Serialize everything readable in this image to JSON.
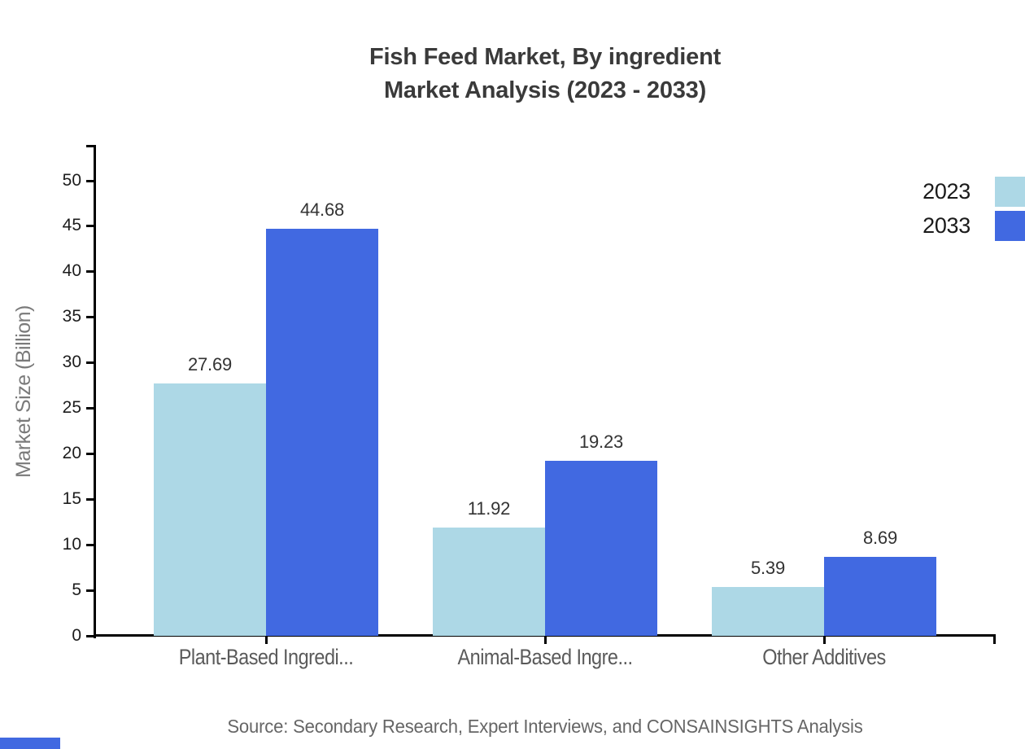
{
  "title": {
    "line1": "Fish Feed Market, By ingredient",
    "line2": "Market Analysis (2023 - 2033)"
  },
  "legend": {
    "entries": [
      {
        "label": "2023",
        "color": "#ADD8E6"
      },
      {
        "label": "2033",
        "color": "#4169E1"
      }
    ]
  },
  "y_axis": {
    "label": "Market Size (Billion)",
    "tick_min": 0,
    "tick_max": 50,
    "tick_step": 5
  },
  "source": "Source: Secondary Research, Expert Interviews, and CONSAINSIGHTS Analysis",
  "brand_bar_color": "#4169E1",
  "chart_data": {
    "type": "bar",
    "title": "Fish Feed Market, By ingredient — Market Analysis (2023 - 2033)",
    "categories": [
      "Plant-Based Ingredi...",
      "Animal-Based Ingre...",
      "Other Additives"
    ],
    "series": [
      {
        "name": "2023",
        "color": "#ADD8E6",
        "values": [
          27.69,
          11.92,
          5.39
        ]
      },
      {
        "name": "2033",
        "color": "#4169E1",
        "values": [
          44.68,
          19.23,
          8.69
        ]
      }
    ],
    "xlabel": "",
    "ylabel": "Market Size (Billion)",
    "ylim": [
      0,
      53.7
    ],
    "ytick_step": 5,
    "grid": false,
    "legend_position": "top-right",
    "value_labels": true
  }
}
